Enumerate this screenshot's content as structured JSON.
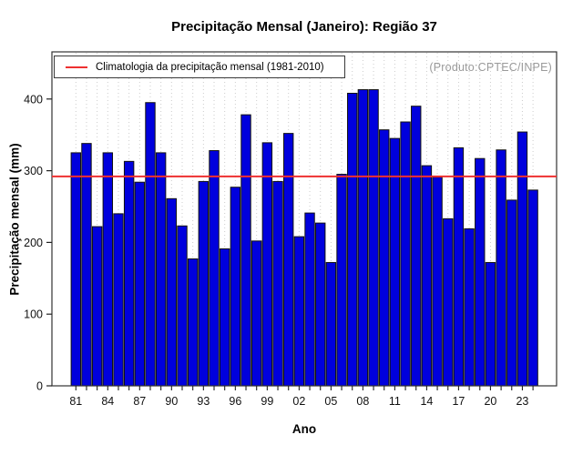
{
  "title": "Precipitação Mensal (Janeiro): Região 37",
  "watermark": "(Produto:CPTEC/INPE)",
  "legend": {
    "label": "Climatologia da precipitação mensal (1981-2010)",
    "line_color": "#ee3030"
  },
  "axes": {
    "x_label": "Ano",
    "y_label": "Precipitação mensal (mm)",
    "y_ticks": [
      0,
      100,
      200,
      300,
      400
    ],
    "x_tick_labels": [
      "81",
      "84",
      "87",
      "90",
      "93",
      "96",
      "99",
      "02",
      "05",
      "08",
      "11",
      "14",
      "17",
      "20",
      "23"
    ]
  },
  "chart_data": {
    "type": "bar",
    "title": "Precipitação Mensal (Janeiro): Região 37",
    "xlabel": "Ano",
    "ylabel": "Precipitação mensal (mm)",
    "ylim": [
      0,
      465
    ],
    "grid": "vertical-dotted-per-year",
    "legend_position": "top-left",
    "annotation": "(Produto:CPTEC/INPE)",
    "categories": [
      "1981",
      "1982",
      "1983",
      "1984",
      "1985",
      "1986",
      "1987",
      "1988",
      "1989",
      "1990",
      "1991",
      "1992",
      "1993",
      "1994",
      "1995",
      "1996",
      "1997",
      "1998",
      "1999",
      "2000",
      "2001",
      "2002",
      "2003",
      "2004",
      "2005",
      "2006",
      "2007",
      "2008",
      "2009",
      "2010",
      "2011",
      "2012",
      "2013",
      "2014",
      "2015",
      "2016",
      "2017",
      "2018",
      "2019",
      "2020",
      "2021",
      "2022",
      "2023",
      "2024"
    ],
    "values": [
      325,
      338,
      222,
      325,
      240,
      313,
      284,
      395,
      325,
      261,
      223,
      177,
      285,
      328,
      191,
      277,
      378,
      202,
      339,
      285,
      352,
      208,
      241,
      227,
      172,
      295,
      408,
      413,
      413,
      357,
      345,
      368,
      390,
      307,
      291,
      233,
      332,
      219,
      317,
      172,
      329,
      259,
      354,
      273
    ],
    "climatology_1981_2010": 292,
    "bar_color": "#0000dd",
    "bar_border_color": "#111111",
    "climatology_line_color": "#ee3030",
    "grid_color": "#cccccc",
    "axis_color": "#333333"
  }
}
